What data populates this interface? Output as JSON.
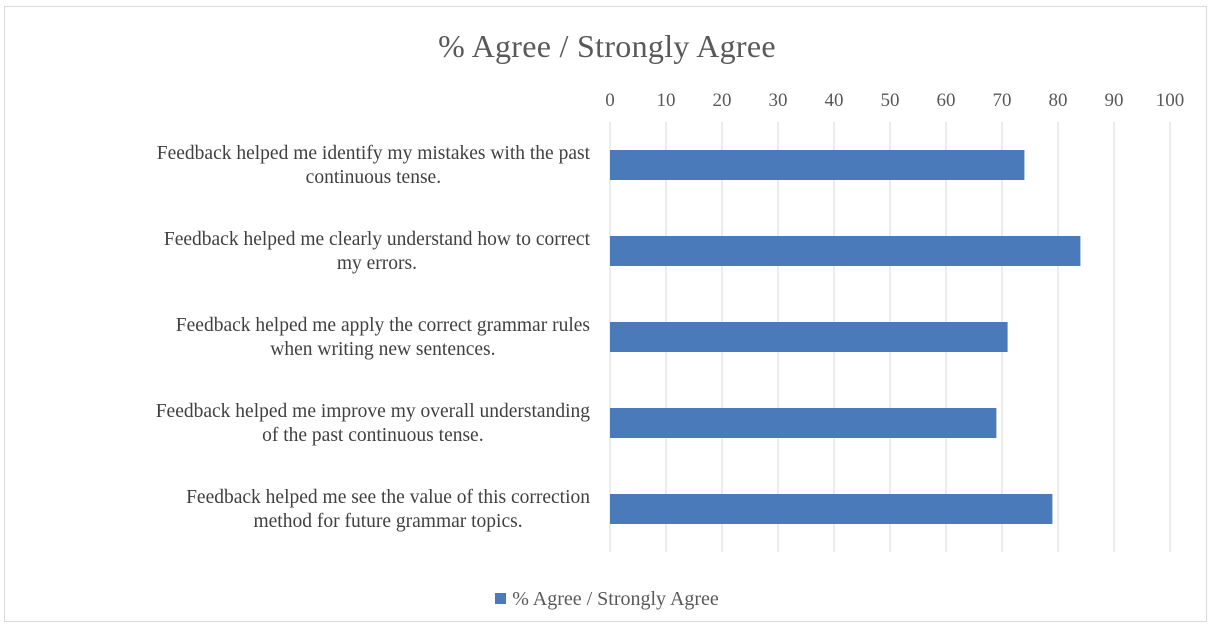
{
  "chart_data": {
    "type": "bar",
    "orientation": "horizontal",
    "title": "% Agree / Strongly Agree",
    "categories": [
      [
        "Feedback helped me identify my mistakes with the past",
        "continuous tense."
      ],
      [
        "Feedback helped me clearly understand how to correct",
        "my errors."
      ],
      [
        "Feedback helped me apply the correct grammar rules",
        "when writing new sentences."
      ],
      [
        "Feedback helped me improve my overall understanding",
        "of the past continuous tense."
      ],
      [
        "Feedback helped me see the value of this correction",
        "method for future grammar topics."
      ]
    ],
    "series": [
      {
        "name": "% Agree / Strongly Agree",
        "values": [
          74,
          84,
          71,
          69,
          79
        ],
        "color": "#4a7ab9"
      }
    ],
    "xlim": [
      0,
      100
    ],
    "xticks": [
      "0",
      "10",
      "20",
      "30",
      "40",
      "50",
      "60",
      "70",
      "80",
      "90",
      "100"
    ],
    "axis_position": "top",
    "grid": true,
    "legend_position": "bottom"
  }
}
